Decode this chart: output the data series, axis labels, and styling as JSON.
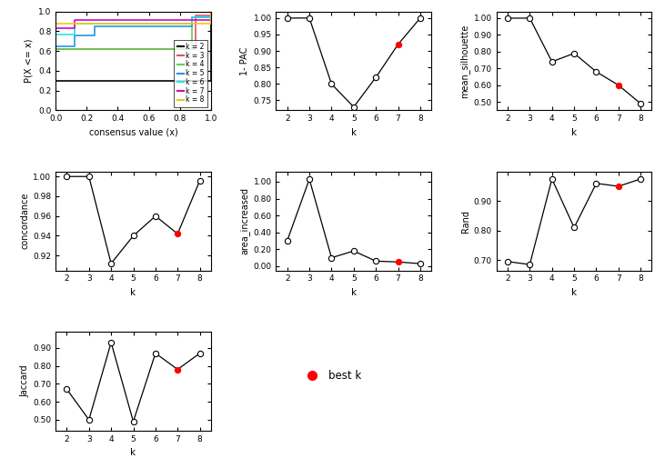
{
  "ecdf_data": {
    "k2": {
      "x": [
        0.0,
        0.0,
        1.0,
        1.0
      ],
      "y": [
        0.0,
        0.3,
        0.3,
        1.0
      ],
      "color": "#000000",
      "lw": 1.2
    },
    "k3": {
      "x": [
        0.0,
        0.0,
        0.9,
        0.9,
        1.0,
        1.0
      ],
      "y": [
        0.0,
        0.62,
        0.62,
        0.96,
        0.96,
        1.0
      ],
      "color": "#DF536B",
      "lw": 1.2
    },
    "k4": {
      "x": [
        0.0,
        0.0,
        0.88,
        0.88,
        1.0,
        1.0
      ],
      "y": [
        0.0,
        0.62,
        0.62,
        0.94,
        0.94,
        1.0
      ],
      "color": "#61D04F",
      "lw": 1.2
    },
    "k5": {
      "x": [
        0.0,
        0.0,
        0.12,
        0.12,
        0.25,
        0.25,
        0.88,
        0.88,
        1.0,
        1.0
      ],
      "y": [
        0.0,
        0.65,
        0.65,
        0.76,
        0.76,
        0.85,
        0.85,
        0.94,
        0.94,
        1.0
      ],
      "color": "#2297E6",
      "lw": 1.2
    },
    "k6": {
      "x": [
        0.0,
        0.0,
        0.12,
        0.12,
        0.88,
        0.88,
        1.0,
        1.0
      ],
      "y": [
        0.0,
        0.77,
        0.77,
        0.88,
        0.88,
        0.94,
        0.94,
        1.0
      ],
      "color": "#28E2E5",
      "lw": 1.2
    },
    "k7": {
      "x": [
        0.0,
        0.0,
        0.12,
        0.12,
        1.0,
        1.0
      ],
      "y": [
        0.0,
        0.83,
        0.83,
        0.91,
        0.91,
        1.0
      ],
      "color": "#CD0BBC",
      "lw": 1.2
    },
    "k8": {
      "x": [
        0.0,
        0.0,
        1.0,
        1.0
      ],
      "y": [
        0.0,
        0.88,
        0.88,
        1.0
      ],
      "color": "#F5C710",
      "lw": 1.2
    }
  },
  "pac_data": {
    "k": [
      2,
      3,
      4,
      5,
      6,
      7,
      8
    ],
    "y": [
      1.0,
      1.0,
      0.8,
      0.73,
      0.82,
      0.92,
      1.0
    ],
    "best_k": 7,
    "ylabel": "1- PAC",
    "ylim": [
      0.72,
      1.02
    ],
    "yticks": [
      0.75,
      0.8,
      0.85,
      0.9,
      0.95,
      1.0
    ]
  },
  "silhouette_data": {
    "k": [
      2,
      3,
      4,
      5,
      6,
      7,
      8
    ],
    "y": [
      1.0,
      1.0,
      0.74,
      0.79,
      0.68,
      0.6,
      0.49
    ],
    "best_k": 7,
    "ylabel": "mean_silhouette",
    "ylim": [
      0.45,
      1.04
    ],
    "yticks": [
      0.5,
      0.6,
      0.7,
      0.8,
      0.9,
      1.0
    ]
  },
  "concordance_data": {
    "k": [
      2,
      3,
      4,
      5,
      6,
      7,
      8
    ],
    "y": [
      1.0,
      1.0,
      0.912,
      0.94,
      0.96,
      0.942,
      0.996
    ],
    "best_k": 7,
    "ylabel": "concordance",
    "ylim": [
      0.905,
      1.005
    ],
    "yticks": [
      0.92,
      0.94,
      0.96,
      0.98,
      1.0
    ]
  },
  "area_data": {
    "k": [
      2,
      3,
      4,
      5,
      6,
      7,
      8
    ],
    "y": [
      0.3,
      1.03,
      0.1,
      0.18,
      0.06,
      0.05,
      0.03
    ],
    "best_k": 7,
    "ylabel": "area_increased",
    "ylim": [
      -0.05,
      1.12
    ],
    "yticks": [
      0.0,
      0.2,
      0.4,
      0.6,
      0.8,
      1.0
    ]
  },
  "rand_data": {
    "k": [
      2,
      3,
      4,
      5,
      6,
      7,
      8
    ],
    "y": [
      0.695,
      0.685,
      0.975,
      0.81,
      0.96,
      0.95,
      0.975
    ],
    "best_k": 7,
    "ylabel": "Rand",
    "ylim": [
      0.665,
      1.0
    ],
    "yticks": [
      0.7,
      0.8,
      0.9
    ]
  },
  "jaccard_data": {
    "k": [
      2,
      3,
      4,
      5,
      6,
      7,
      8
    ],
    "y": [
      0.67,
      0.5,
      0.93,
      0.49,
      0.87,
      0.78,
      0.87
    ],
    "best_k": 7,
    "ylabel": "Jaccard",
    "ylim": [
      0.44,
      0.99
    ],
    "yticks": [
      0.5,
      0.6,
      0.7,
      0.8,
      0.9
    ]
  },
  "best_k_color": "#FF0000",
  "line_color": "black",
  "xlabel": "k",
  "legend_labels": [
    "k = 2",
    "k = 3",
    "k = 4",
    "k = 5",
    "k = 6",
    "k = 7",
    "k = 8"
  ],
  "legend_colors": [
    "#000000",
    "#DF536B",
    "#61D04F",
    "#2297E6",
    "#28E2E5",
    "#CD0BBC",
    "#F5C710"
  ]
}
